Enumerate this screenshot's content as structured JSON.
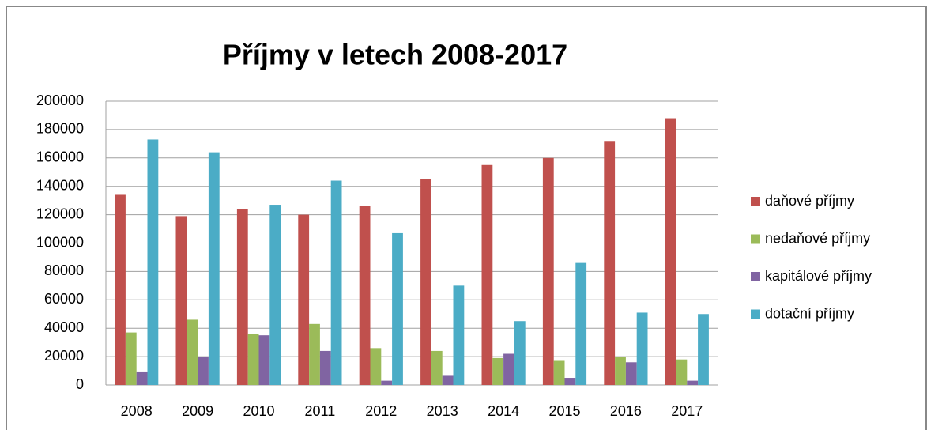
{
  "chart_data": {
    "type": "bar",
    "title": "Příjmy v letech 2008-2017",
    "categories": [
      "2008",
      "2009",
      "2010",
      "2011",
      "2012",
      "2013",
      "2014",
      "2015",
      "2016",
      "2017"
    ],
    "series": [
      {
        "name": "daňové příjmy",
        "color": "#c0504d",
        "values": [
          134000,
          119000,
          124000,
          120000,
          126000,
          145000,
          155000,
          160000,
          172000,
          188000
        ]
      },
      {
        "name": "nedaňové příjmy",
        "color": "#9bbb59",
        "values": [
          37000,
          46000,
          36000,
          43000,
          26000,
          24000,
          19000,
          17000,
          20000,
          18000
        ]
      },
      {
        "name": "kapitálové příjmy",
        "color": "#8064a2",
        "values": [
          9500,
          20000,
          35000,
          24000,
          3000,
          7000,
          22000,
          5000,
          16000,
          3000
        ]
      },
      {
        "name": "dotační příjmy",
        "color": "#4bacc6",
        "values": [
          173000,
          164000,
          127000,
          144000,
          107000,
          70000,
          45000,
          86000,
          51000,
          50000
        ]
      }
    ],
    "ylim": [
      0,
      200000
    ],
    "yticks": [
      0,
      20000,
      40000,
      60000,
      80000,
      100000,
      120000,
      140000,
      160000,
      180000,
      200000
    ],
    "grid": true,
    "legend": "right"
  }
}
